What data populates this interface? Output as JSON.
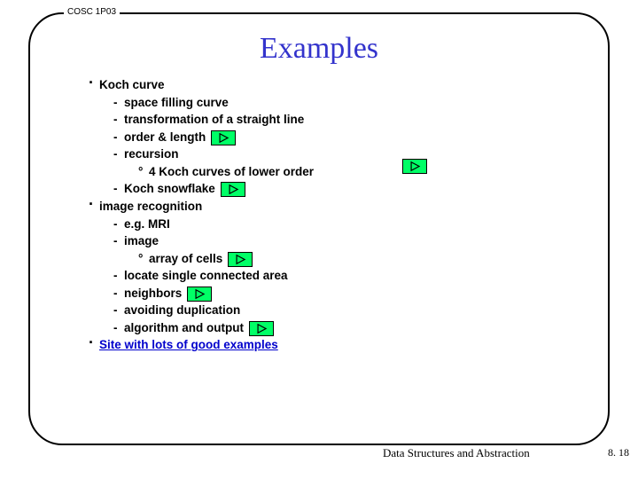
{
  "courseTag": "COSC 1P03",
  "title": "Examples",
  "colors": {
    "titleColor": "#3333cc",
    "frameBorder": "#000000",
    "linkColor": "#0000cc",
    "playFill": "#00ff66",
    "playStroke": "#000000",
    "background": "#ffffff"
  },
  "playButton": {
    "width": 28,
    "height": 17
  },
  "content": [
    {
      "level": 0,
      "text": "Koch curve"
    },
    {
      "level": 1,
      "text": "space filling curve"
    },
    {
      "level": 1,
      "text": "transformation of a straight line"
    },
    {
      "level": 1,
      "text": "order & length",
      "play": true
    },
    {
      "level": 1,
      "text": "recursion"
    },
    {
      "level": 2,
      "text": "4 Koch curves of lower order"
    },
    {
      "level": 1,
      "text": "Koch snowflake",
      "play": true
    },
    {
      "level": 0,
      "text": "image recognition"
    },
    {
      "level": 1,
      "text": "e.g. MRI"
    },
    {
      "level": 1,
      "text": "image"
    },
    {
      "level": 2,
      "text": "array of cells",
      "play": true
    },
    {
      "level": 1,
      "text": "locate single connected area"
    },
    {
      "level": 1,
      "text": "neighbors",
      "play": true
    },
    {
      "level": 1,
      "text": "avoiding duplication"
    },
    {
      "level": 1,
      "text": "algorithm and output",
      "play": true
    },
    {
      "level": 0,
      "text": "Site with lots of good examples",
      "link": true
    }
  ],
  "extraPlay": {
    "afterRowText": "recursion"
  },
  "footer": {
    "left": "Data Structures and Abstraction",
    "right": "8. 18"
  }
}
